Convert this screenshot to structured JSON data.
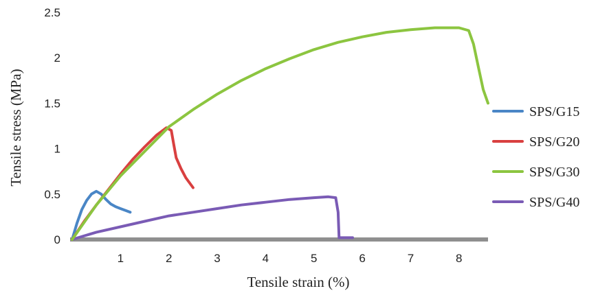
{
  "chart_data": {
    "type": "line",
    "title": "",
    "xlabel": "Tensile strain (%)",
    "ylabel": "Tensile stress (MPa)",
    "xlim": [
      0,
      8.6
    ],
    "ylim": [
      0,
      2.5
    ],
    "x_ticks": [
      "1",
      "2",
      "3",
      "4",
      "5",
      "6",
      "7",
      "8"
    ],
    "y_ticks": [
      "0",
      "0.5",
      "1",
      "1.5",
      "2",
      "2.5"
    ],
    "grid": false,
    "legend_position": "right",
    "series": [
      {
        "name": "SPS/G15",
        "color": "#4a86c6",
        "points": [
          [
            0,
            0
          ],
          [
            0.1,
            0.18
          ],
          [
            0.2,
            0.33
          ],
          [
            0.3,
            0.43
          ],
          [
            0.4,
            0.5
          ],
          [
            0.5,
            0.53
          ],
          [
            0.6,
            0.5
          ],
          [
            0.7,
            0.44
          ],
          [
            0.8,
            0.39
          ],
          [
            0.9,
            0.36
          ],
          [
            1.0,
            0.34
          ],
          [
            1.1,
            0.32
          ],
          [
            1.2,
            0.3
          ]
        ]
      },
      {
        "name": "SPS/G20",
        "color": "#d94040",
        "points": [
          [
            0,
            0
          ],
          [
            0.25,
            0.2
          ],
          [
            0.5,
            0.38
          ],
          [
            0.75,
            0.55
          ],
          [
            1.0,
            0.72
          ],
          [
            1.25,
            0.88
          ],
          [
            1.5,
            1.02
          ],
          [
            1.75,
            1.15
          ],
          [
            1.95,
            1.23
          ],
          [
            2.05,
            1.2
          ],
          [
            2.1,
            1.05
          ],
          [
            2.15,
            0.9
          ],
          [
            2.25,
            0.78
          ],
          [
            2.35,
            0.68
          ],
          [
            2.5,
            0.57
          ]
        ]
      },
      {
        "name": "SPS/G30",
        "color": "#8cc540",
        "points": [
          [
            0,
            0
          ],
          [
            0.5,
            0.38
          ],
          [
            1.0,
            0.7
          ],
          [
            1.5,
            0.97
          ],
          [
            2.0,
            1.24
          ],
          [
            2.5,
            1.43
          ],
          [
            3.0,
            1.6
          ],
          [
            3.5,
            1.75
          ],
          [
            4.0,
            1.88
          ],
          [
            4.5,
            1.99
          ],
          [
            5.0,
            2.09
          ],
          [
            5.5,
            2.17
          ],
          [
            6.0,
            2.23
          ],
          [
            6.5,
            2.28
          ],
          [
            7.0,
            2.31
          ],
          [
            7.5,
            2.33
          ],
          [
            8.0,
            2.33
          ],
          [
            8.2,
            2.3
          ],
          [
            8.3,
            2.15
          ],
          [
            8.4,
            1.9
          ],
          [
            8.5,
            1.65
          ],
          [
            8.6,
            1.5
          ]
        ]
      },
      {
        "name": "SPS/G40",
        "color": "#7a5bb5",
        "points": [
          [
            0,
            0
          ],
          [
            0.5,
            0.08
          ],
          [
            1.0,
            0.14
          ],
          [
            1.5,
            0.2
          ],
          [
            2.0,
            0.26
          ],
          [
            2.5,
            0.3
          ],
          [
            3.0,
            0.34
          ],
          [
            3.5,
            0.38
          ],
          [
            4.0,
            0.41
          ],
          [
            4.5,
            0.44
          ],
          [
            5.0,
            0.46
          ],
          [
            5.3,
            0.47
          ],
          [
            5.45,
            0.46
          ],
          [
            5.5,
            0.3
          ],
          [
            5.52,
            0.02
          ],
          [
            5.8,
            0.02
          ]
        ]
      }
    ]
  }
}
